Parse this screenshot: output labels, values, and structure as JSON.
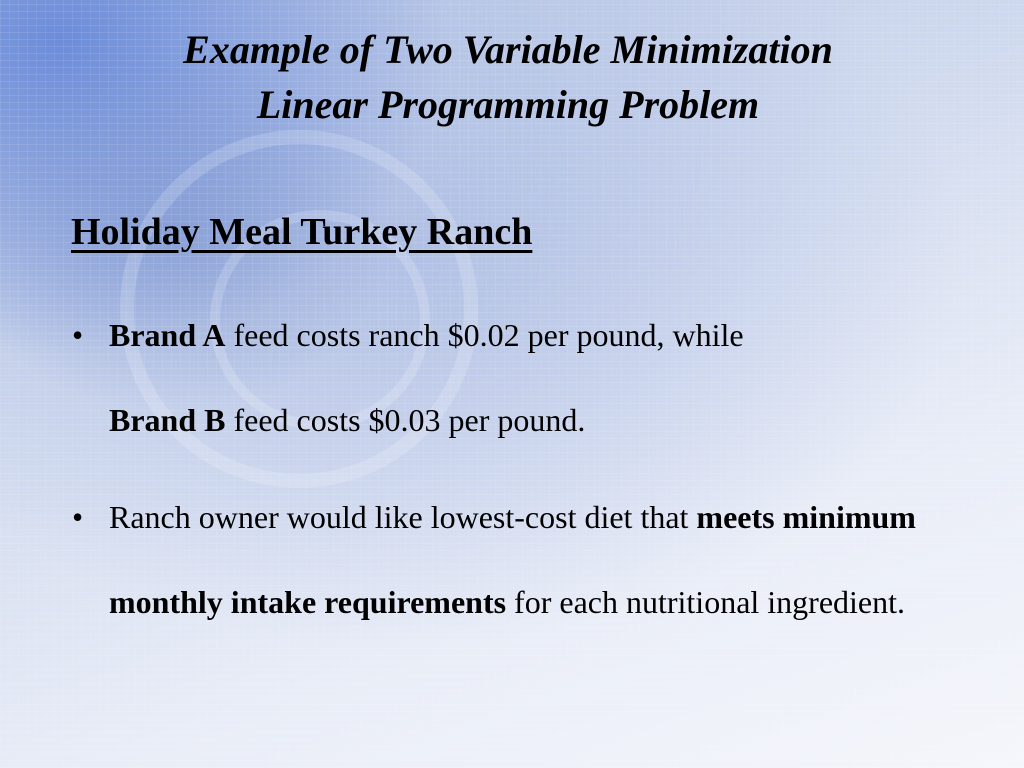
{
  "slide": {
    "title_line1": "Example of Two Variable Minimization",
    "title_line2": "Linear Programming Problem",
    "heading": "Holiday Meal Turkey Ranch",
    "bullet_char": "•",
    "bullets": [
      {
        "b1": "Brand A",
        "t1": " feed costs ranch $0.02 per pound, while ",
        "b2": "Brand B",
        "t2": " feed costs $0.03 per pound."
      },
      {
        "t1": "Ranch owner would like lowest-cost diet that ",
        "b1": "meets minimum monthly intake requirements",
        "t2": " for each nutritional ingredient."
      }
    ]
  }
}
